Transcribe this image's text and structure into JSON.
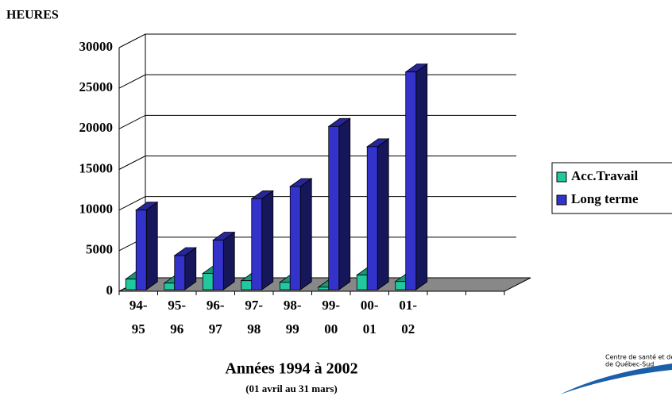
{
  "chart_data": {
    "type": "bar3d",
    "title": "HEURES",
    "x_label": "Années 1994 à 2002",
    "x_sublabel": "(01 avril au 31 mars)",
    "categories": [
      "94-95",
      "95-96",
      "96-97",
      "97-98",
      "98-99",
      "99-00",
      "00-01",
      "01-02"
    ],
    "series": [
      {
        "name": "Acc.Travail",
        "color": "#20c8a0",
        "values": [
          1500,
          1000,
          2200,
          1300,
          1100,
          500,
          2000,
          1200
        ]
      },
      {
        "name": "Long terme",
        "color": "#3333cc",
        "values": [
          10000,
          4400,
          6300,
          11400,
          12900,
          20300,
          17800,
          27000
        ]
      }
    ],
    "ylim": [
      0,
      30000
    ],
    "yticks": [
      0,
      5000,
      10000,
      15000,
      20000,
      25000,
      30000
    ],
    "grid": true,
    "legend": "right"
  },
  "logo": {
    "line1": "Centre de santé et de",
    "line2": "de Québec-Sud"
  }
}
